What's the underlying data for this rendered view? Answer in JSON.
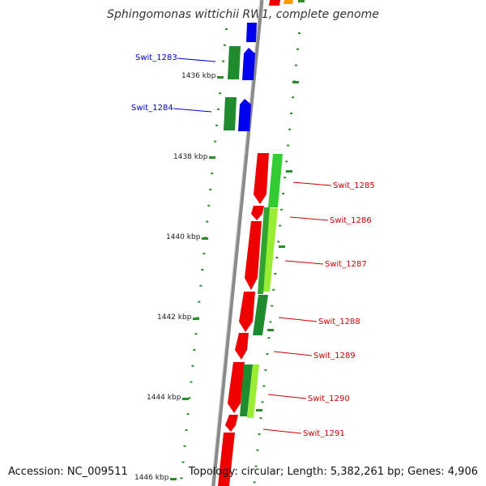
{
  "title": "Sphingomonas wittichii RW1, complete genome",
  "footer": {
    "accession": "Accession: NC_009511",
    "summary": "Topology: circular; Length: 5,382,261 bp; Genes: 4,906"
  },
  "colors": {
    "backbone": "#8a8a8a",
    "tick": "#2e8b2e",
    "label_blue": "#0000cc",
    "label_red": "#cc0000"
  },
  "kbp_ticks": [
    "1436 kbp",
    "1438 kbp",
    "1440 kbp",
    "1442 kbp",
    "1444 kbp",
    "1446 kbp"
  ],
  "gene_labels": [
    {
      "text": "Swit_1283",
      "side": "left"
    },
    {
      "text": "Swit_1284",
      "side": "left"
    },
    {
      "text": "Swit_1285",
      "side": "right"
    },
    {
      "text": "Swit_1286",
      "side": "right"
    },
    {
      "text": "Swit_1287",
      "side": "right"
    },
    {
      "text": "Swit_1288",
      "side": "right"
    },
    {
      "text": "Swit_1289",
      "side": "right"
    },
    {
      "text": "Swit_1290",
      "side": "right"
    },
    {
      "text": "Swit_1291",
      "side": "right"
    }
  ]
}
